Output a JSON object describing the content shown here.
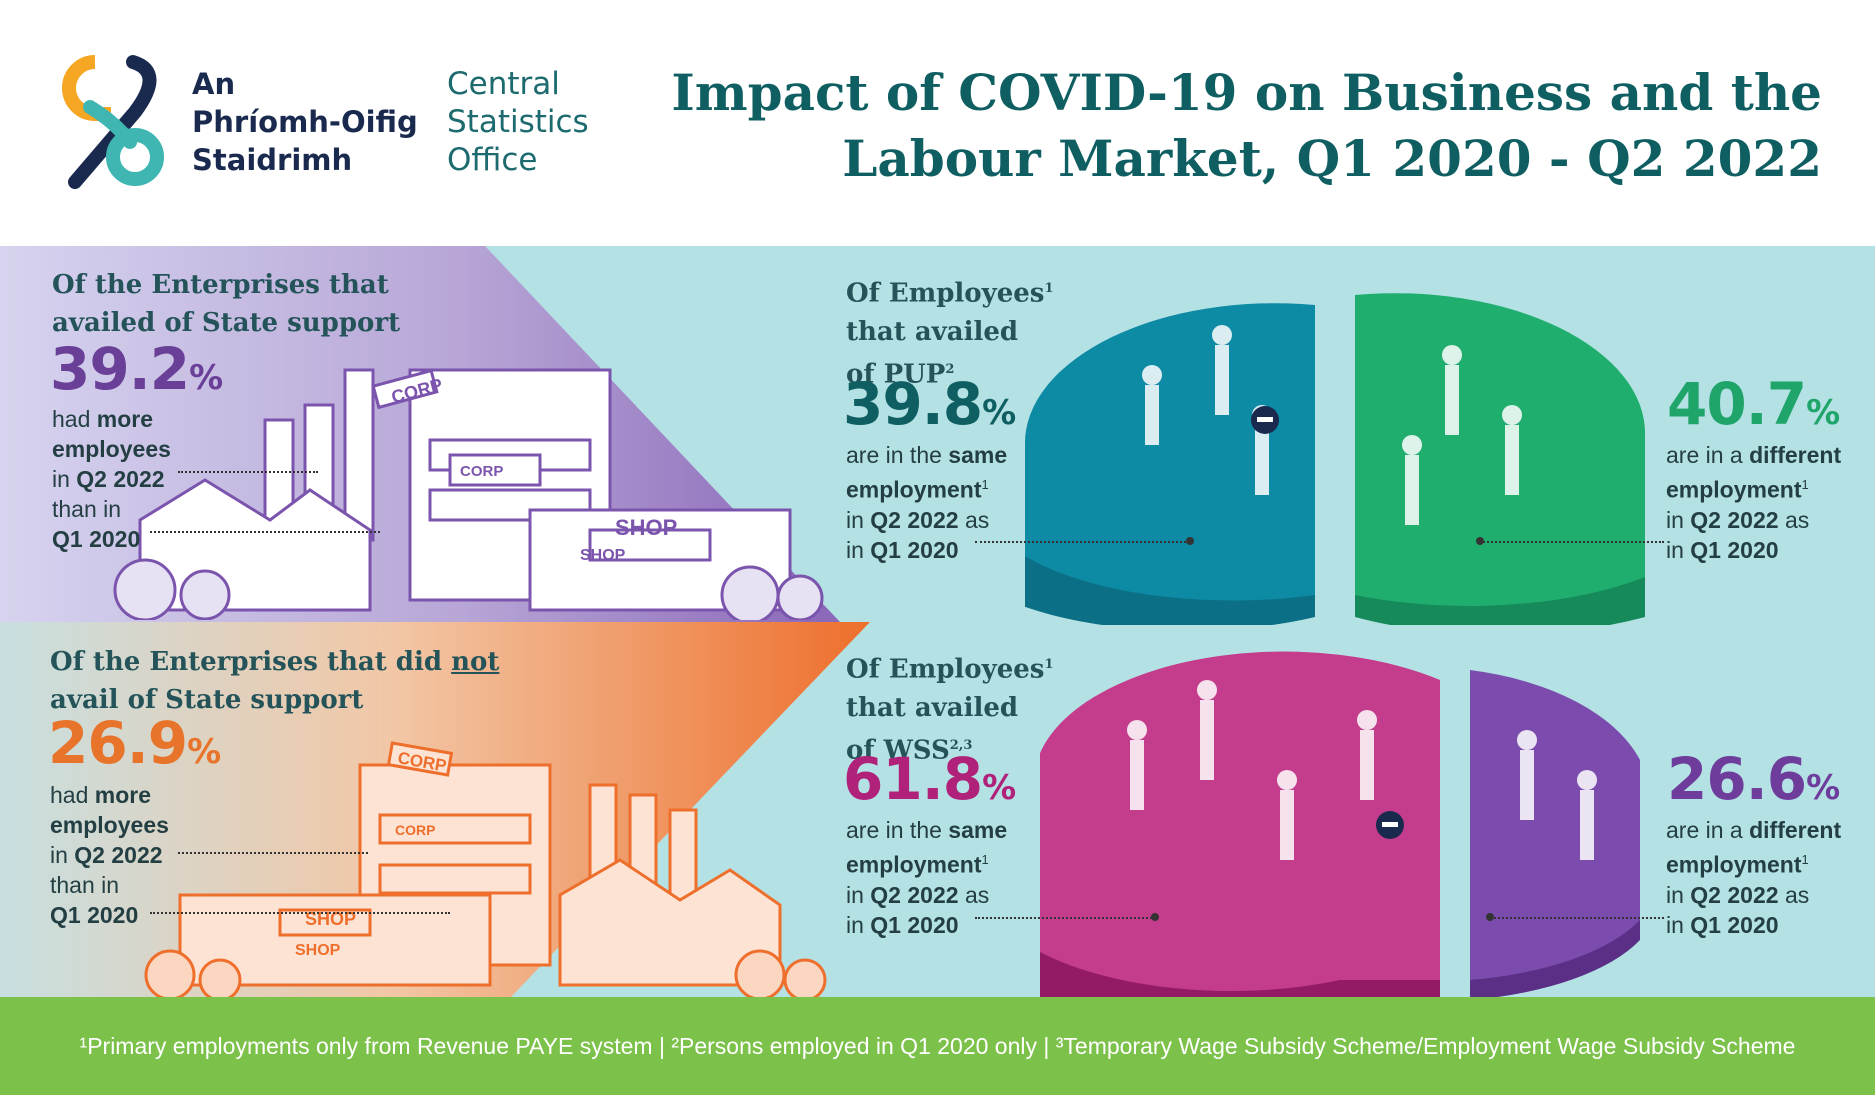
{
  "header": {
    "logo_name_ga": [
      "An",
      "Phríomh-Oifig",
      "Staidrimh"
    ],
    "logo_name_en": [
      "Central",
      "Statistics",
      "Office"
    ],
    "title_line1": "Impact of COVID-19 on Business and the",
    "title_line2": "Labour Market, Q1 2020 - Q2 2022"
  },
  "colors": {
    "band": "#b4e1e4",
    "footer": "#7cc14a",
    "title": "#0f5f62",
    "state_support": "#6a3f98",
    "no_state_support": "#e8742b",
    "pup_same": "#0d7f98",
    "pup_different": "#1fa46a",
    "wss_same": "#b0227a",
    "wss_different": "#6e3c9b"
  },
  "enterprises": {
    "supported": {
      "heading_line1": "Of the Enterprises that",
      "heading_line2": "availed of State support",
      "value": "39.2",
      "unit": "%",
      "desc_line1": "had",
      "desc_bold1": "more",
      "desc_line2": "employees",
      "desc_line3_pre": "in",
      "desc_line3_bold": "Q2 2022",
      "desc_line4": "than in",
      "desc_line5": "Q1 2020",
      "illustration_labels": [
        "CORP",
        "CORP",
        "SHOP",
        "SHOP"
      ]
    },
    "not_supported": {
      "heading_line1": "Of the Enterprises that did",
      "heading_not": "not",
      "heading_line2": "avail of State support",
      "value": "26.9",
      "unit": "%",
      "desc_line1": "had",
      "desc_bold1": "more",
      "desc_line2": "employees",
      "desc_line3_pre": "in",
      "desc_line3_bold": "Q2 2022",
      "desc_line4": "than in",
      "desc_line5": "Q1 2020",
      "illustration_labels": [
        "CORP",
        "CORP",
        "SHOP",
        "SHOP"
      ]
    }
  },
  "employees": {
    "pup": {
      "heading_line1": "Of Employees",
      "heading_sup1": "1",
      "heading_line2": "that availed",
      "heading_line3": "of PUP",
      "heading_sup3": "2",
      "same_value": "39.8",
      "same_unit": "%",
      "same_desc_line1_pre": "are in the",
      "same_desc_line1_bold": "same",
      "same_desc_line2": "employment",
      "same_desc_sup": "1",
      "same_desc_line3_bold": "Q2 2022",
      "same_desc_line3_pre": "in",
      "same_desc_line3_post": "as",
      "same_desc_line4_pre": "in",
      "same_desc_line4_bold": "Q1 2020",
      "diff_value": "40.7",
      "diff_unit": "%",
      "diff_desc_line1_pre": "are in a",
      "diff_desc_line1_bold": "different",
      "diff_desc_line2": "employment",
      "diff_desc_sup": "1",
      "diff_desc_line3_pre": "in",
      "diff_desc_line3_bold": "Q2 2022",
      "diff_desc_line3_post": "as",
      "diff_desc_line4_pre": "in",
      "diff_desc_line4_bold": "Q1 2020"
    },
    "wss": {
      "heading_line1": "Of Employees",
      "heading_sup1": "1",
      "heading_line2": "that availed",
      "heading_line3": "of WSS",
      "heading_sup3": "2,3",
      "same_value": "61.8",
      "same_unit": "%",
      "same_desc_line1_pre": "are in the",
      "same_desc_line1_bold": "same",
      "same_desc_line2": "employment",
      "same_desc_sup": "1",
      "same_desc_line3_pre": "in",
      "same_desc_line3_bold": "Q2 2022",
      "same_desc_line3_post": "as",
      "same_desc_line4_pre": "in",
      "same_desc_line4_bold": "Q1 2020",
      "diff_value": "26.6",
      "diff_unit": "%",
      "diff_desc_line1_pre": "are in a",
      "diff_desc_line1_bold": "different",
      "diff_desc_line2": "employment",
      "diff_desc_sup": "1",
      "diff_desc_line3_pre": "in",
      "diff_desc_line3_bold": "Q2 2022",
      "diff_desc_line3_post": "as",
      "diff_desc_line4_pre": "in",
      "diff_desc_line4_bold": "Q1 2020"
    }
  },
  "footer": {
    "text": "¹Primary employments only from Revenue PAYE system | ²Persons employed in Q1 2020 only  | ³Temporary Wage Subsidy Scheme/Employment Wage Subsidy Scheme"
  }
}
